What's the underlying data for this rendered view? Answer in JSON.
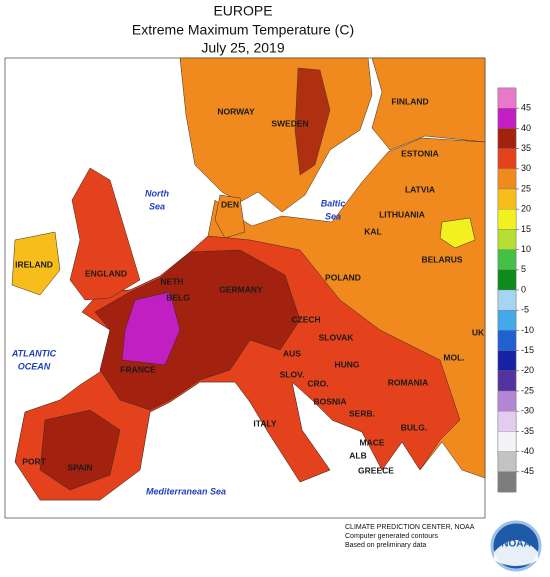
{
  "title": {
    "lines": [
      "EUROPE",
      "Extreme Maximum Temperature (C)",
      "July 25, 2019"
    ]
  },
  "countries": [
    "NORWAY",
    "SWEDEN",
    "FINLAND",
    "ESTONIA",
    "LATVIA",
    "LITHUANIA",
    "DEN",
    "KAL",
    "BELARUS",
    "IRELAND",
    "ENGLAND",
    "NETH",
    "BELG",
    "GERMANY",
    "POLAND",
    "CZECH",
    "SLOVAK",
    "UK",
    "FRANCE",
    "AUS",
    "HUNG",
    "MOL.",
    "SLOV.",
    "CRO.",
    "ROMANIA",
    "BOSNIA",
    "SERB.",
    "BULG.",
    "MACE",
    "ALB",
    "ITALY",
    "GREECE",
    "PORT",
    "SPAIN"
  ],
  "seas": [
    {
      "lines": [
        "North",
        "Sea"
      ]
    },
    {
      "lines": [
        "Baltic",
        "Sea"
      ]
    },
    {
      "lines": [
        "ATLANTIC",
        "OCEAN"
      ]
    },
    {
      "lines": [
        "Mediterranean Sea"
      ]
    }
  ],
  "legend": {
    "ticks": [
      45,
      40,
      35,
      30,
      25,
      20,
      15,
      10,
      5,
      0,
      -5,
      -10,
      -15,
      -20,
      -25,
      -30,
      -35,
      -40,
      -45
    ],
    "colors": [
      "#e67ac9",
      "#c21fc2",
      "#a3210f",
      "#e4421d",
      "#f08a1e",
      "#f7bd1a",
      "#f2f01f",
      "#b6de33",
      "#45bf45",
      "#118a1c",
      "#a6d4f2",
      "#43a9e8",
      "#2061d1",
      "#1621a3",
      "#55339f",
      "#b385d3",
      "#e3cbf1",
      "#f4f4f8",
      "#c3c3c3",
      "#7d7d7d"
    ]
  },
  "credits": [
    "CLIMATE PREDICTION CENTER, NOAA",
    "Computer generated contours",
    "Based on preliminary data"
  ],
  "logo": "NOAA"
}
